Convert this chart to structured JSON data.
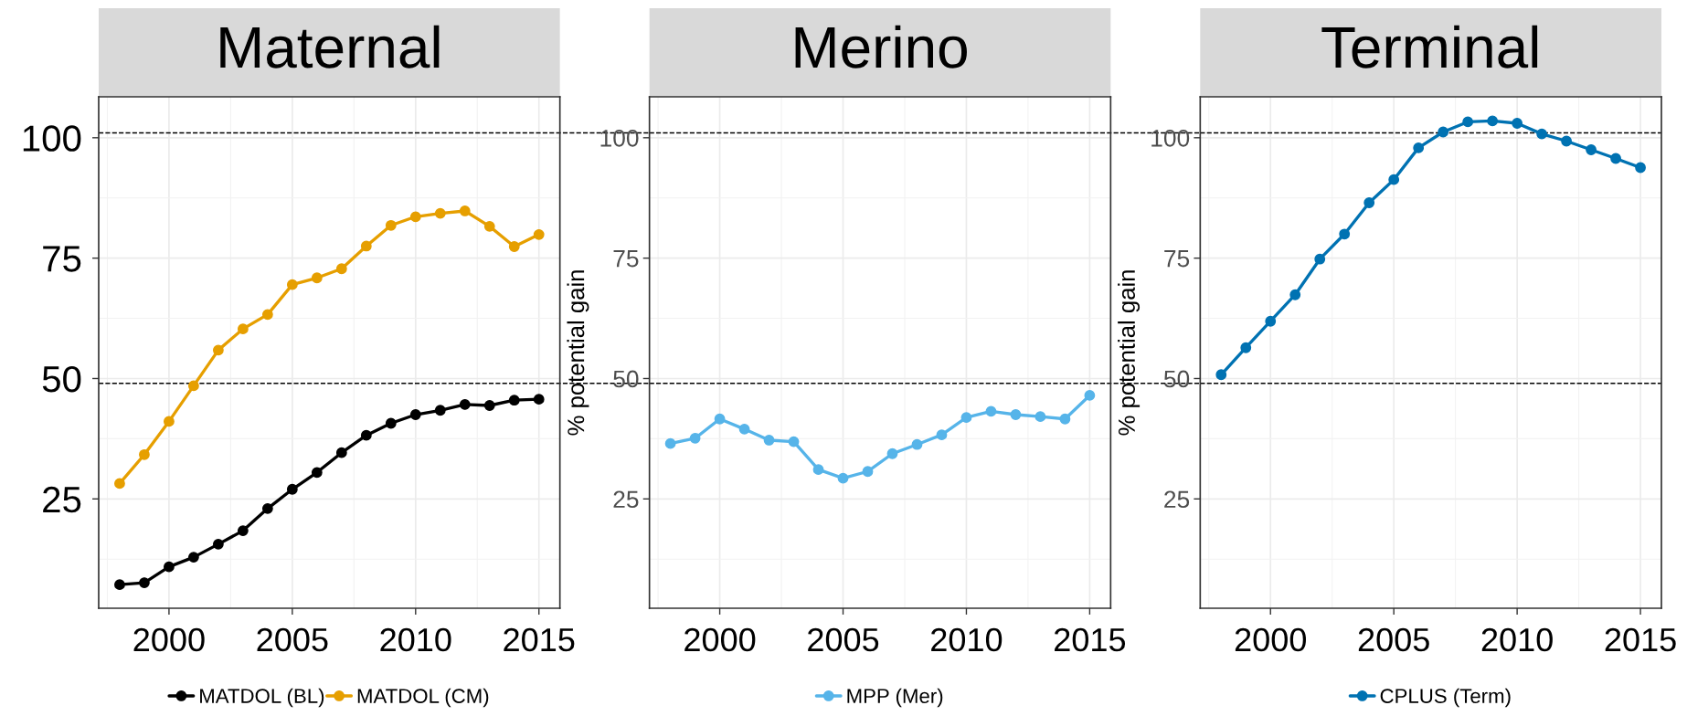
{
  "chart_data": [
    {
      "type": "line",
      "title": "Maternal",
      "x": [
        1998,
        1999,
        2000,
        2001,
        2002,
        2003,
        2004,
        2005,
        2006,
        2007,
        2008,
        2009,
        2010,
        2011,
        2012,
        2013,
        2014,
        2015
      ],
      "series": [
        {
          "name": "MATDOL (BL)",
          "color": "#000000",
          "values": [
            7.2,
            7.6,
            10.9,
            12.9,
            15.6,
            18.4,
            23.0,
            27.0,
            30.5,
            34.6,
            38.2,
            40.7,
            42.5,
            43.4,
            44.6,
            44.4,
            45.5,
            45.7
          ]
        },
        {
          "name": "MATDOL (CM)",
          "color": "#e69f00",
          "values": [
            28.2,
            34.2,
            41.1,
            48.5,
            55.9,
            60.3,
            63.3,
            69.5,
            70.9,
            72.8,
            77.5,
            81.8,
            83.6,
            84.3,
            84.8,
            81.6,
            77.4,
            79.9
          ]
        }
      ],
      "xlim": [
        1997.15,
        2015.85
      ],
      "ylim": [
        2.3,
        108.5
      ],
      "xticks": [
        2000,
        2005,
        2010,
        2015
      ],
      "yticks": [
        25,
        50,
        75,
        100
      ],
      "ref_lines": [
        {
          "axis": "y",
          "value": 101,
          "color": "#000000",
          "line_style": "dashed"
        },
        {
          "axis": "y",
          "value": 49,
          "color": "#000000",
          "line_style": "dashed"
        }
      ],
      "grid": true,
      "legend": "bottom",
      "marker": "circle",
      "line_style": "solid"
    },
    {
      "type": "line",
      "title": "Merino",
      "ylabel": "% potential gain",
      "x": [
        1998,
        1999,
        2000,
        2001,
        2002,
        2003,
        2004,
        2005,
        2006,
        2007,
        2008,
        2009,
        2010,
        2011,
        2012,
        2013,
        2014,
        2015
      ],
      "series": [
        {
          "name": "MPP (Mer)",
          "color": "#56b4e9",
          "values": [
            36.5,
            37.6,
            41.6,
            39.5,
            37.2,
            36.9,
            31.1,
            29.3,
            30.7,
            34.4,
            36.3,
            38.3,
            41.9,
            43.2,
            42.5,
            42.1,
            41.6,
            46.5
          ]
        }
      ],
      "xlim": [
        1997.15,
        2015.85
      ],
      "ylim": [
        2.3,
        108.5
      ],
      "xticks": [
        2000,
        2005,
        2010,
        2015
      ],
      "yticks": [
        25,
        50,
        75,
        100
      ],
      "ref_lines": [
        {
          "axis": "y",
          "value": 101,
          "color": "#000000",
          "line_style": "dashed"
        },
        {
          "axis": "y",
          "value": 49,
          "color": "#000000",
          "line_style": "dashed"
        }
      ],
      "grid": true,
      "legend": "bottom",
      "marker": "circle",
      "line_style": "solid"
    },
    {
      "type": "line",
      "title": "Terminal",
      "ylabel": "% potential gain",
      "x": [
        1998,
        1999,
        2000,
        2001,
        2002,
        2003,
        2004,
        2005,
        2006,
        2007,
        2008,
        2009,
        2010,
        2011,
        2012,
        2013,
        2014,
        2015
      ],
      "series": [
        {
          "name": "CPLUS (Term)",
          "color": "#0072b2",
          "values": [
            50.8,
            56.4,
            61.9,
            67.4,
            74.8,
            80.0,
            86.5,
            91.3,
            97.9,
            101.2,
            103.3,
            103.5,
            103.0,
            100.8,
            99.3,
            97.5,
            95.7,
            93.8
          ]
        }
      ],
      "xlim": [
        1997.15,
        2015.85
      ],
      "ylim": [
        2.3,
        108.5
      ],
      "xticks": [
        2000,
        2005,
        2010,
        2015
      ],
      "yticks": [
        25,
        50,
        75,
        100
      ],
      "ref_lines": [
        {
          "axis": "y",
          "value": 101,
          "color": "#000000",
          "line_style": "dashed"
        },
        {
          "axis": "y",
          "value": 49,
          "color": "#000000",
          "line_style": "dashed"
        }
      ],
      "grid": true,
      "legend": "bottom",
      "marker": "circle",
      "line_style": "solid"
    }
  ]
}
